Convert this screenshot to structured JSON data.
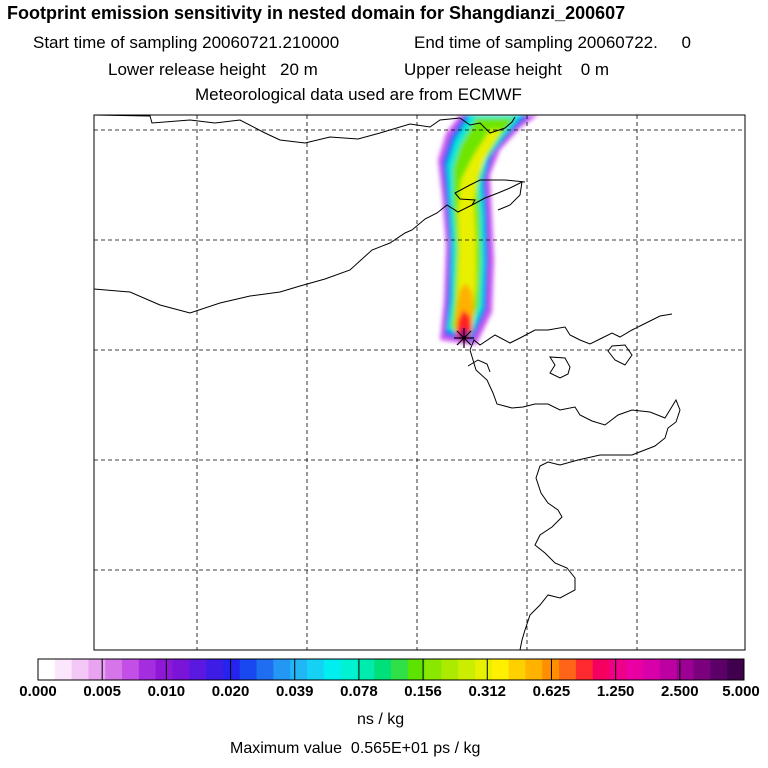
{
  "header": {
    "title": "Footprint emission sensitivity in nested domain for Shangdianzi_200607",
    "start_sampling": "Start time of sampling 20060721.210000",
    "end_sampling": "End time of sampling 20060722.     0",
    "lower_release": "Lower release height   20 m",
    "upper_release": "Upper release height    0 m",
    "met_source": "Meteorological data used are from ECMWF"
  },
  "colorbar": {
    "tick_labels": [
      "0.000",
      "0.005",
      "0.010",
      "0.020",
      "0.039",
      "0.078",
      "0.156",
      "0.312",
      "0.625",
      "1.250",
      "2.500",
      "5.000"
    ],
    "colors": [
      "#ffffff",
      "#fbe6fb",
      "#f4c8f6",
      "#e9a3f0",
      "#d675ea",
      "#c34fe6",
      "#a52de0",
      "#8e18d6",
      "#7a14d8",
      "#5a18e0",
      "#3d1de6",
      "#2424ee",
      "#1948f0",
      "#1f6ef2",
      "#2496f4",
      "#21b6f5",
      "#15d2f5",
      "#00eef0",
      "#00f2d2",
      "#00ecae",
      "#00e07a",
      "#2fe048",
      "#5ce300",
      "#8ae800",
      "#acea00",
      "#cbee00",
      "#e6f000",
      "#fff000",
      "#ffd000",
      "#ffb200",
      "#ff8e00",
      "#ff6418",
      "#ff2a30",
      "#f50060",
      "#ee0088",
      "#ea00a2",
      "#d800a8",
      "#bd00a2",
      "#9c0092",
      "#7a007e",
      "#5c0068",
      "#40004e"
    ],
    "units": "ns / kg",
    "max_value": "Maximum value  0.565E+01 ps / kg"
  },
  "map": {
    "receptor": "Shangdianzi",
    "receptor_marker": "star-marker",
    "plume_colors": {
      "outer": "#cc55ee",
      "blue": "#1f66f4",
      "cyan": "#00e6d8",
      "green": "#6ee600",
      "yellow": "#e8f000",
      "orange": "#ffb000",
      "red": "#ff2020",
      "core": "#b0008a"
    }
  }
}
